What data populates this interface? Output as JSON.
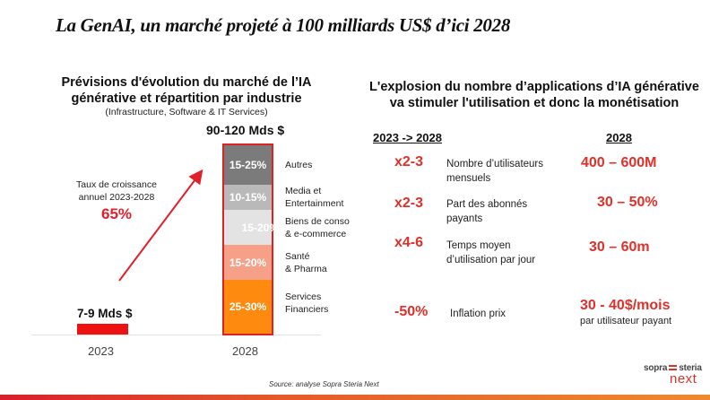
{
  "title": "La GenAI, un marché projeté à 100 milliards US$ d’ici 2028",
  "left_panel": {
    "heading_line1": "Prévisions d'évolution du marché de l’IA",
    "heading_line2": "générative et répartition par industrie",
    "subheading": "(Infrastructure, Software & IT Services)",
    "growth_label_line1": "Taux de croissance",
    "growth_label_line2": "annuel 2023-2028",
    "growth_value": "65%"
  },
  "chart_data": {
    "type": "bar",
    "title": "Prévisions d'évolution du marché de l’IA générative et répartition par industrie",
    "subtitle": "(Infrastructure, Software & IT Services)",
    "categories": [
      "2023",
      "2028"
    ],
    "totals_label": [
      "7-9 Mds $",
      "90-120 Mds $"
    ],
    "totals_range_bn_usd": [
      [
        7,
        9
      ],
      [
        90,
        120
      ]
    ],
    "stacked_2028": [
      {
        "industry_line1": "Autres",
        "industry_line2": "",
        "share_label": "15-25%",
        "share_range": [
          15,
          25
        ],
        "color": "#7b7b7b"
      },
      {
        "industry_line1": "Media et",
        "industry_line2": "Entertainment",
        "share_label": "10-15%",
        "share_range": [
          10,
          15
        ],
        "color": "#b9b9b9"
      },
      {
        "industry_line1": "Biens de conso",
        "industry_line2": "& e-commerce",
        "share_label": "15-20%",
        "share_range": [
          15,
          20
        ],
        "color": "#e3e3e3"
      },
      {
        "industry_line1": "Santé",
        "industry_line2": "& Pharma",
        "share_label": "15-20%",
        "share_range": [
          15,
          20
        ],
        "color": "#f7a088"
      },
      {
        "industry_line1": "Services",
        "industry_line2": "Financiers",
        "share_label": "25-30%",
        "share_range": [
          25,
          30
        ],
        "color": "#ff8a10"
      }
    ],
    "bar_2023_color": "#ee1111",
    "bar_2028_border": "#dd2222",
    "annotation": "Taux de croissance annuel 2023-2028 65%",
    "xlabel": "",
    "ylabel": ""
  },
  "right_panel": {
    "heading_line1": "L'explosion du nombre d’applications d’IA générative",
    "heading_line2": "va stimuler l'utilisation et donc la monétisation",
    "col_growth": "2023 -> 2028",
    "col_2028": "2028",
    "rows": [
      {
        "growth": "x2-3",
        "metric_line1": "Nombre d’utilisateurs",
        "metric_line2": "mensuels",
        "value": "400 – 600M",
        "value_sub": ""
      },
      {
        "growth": "x2-3",
        "metric_line1": "Part des abonnés",
        "metric_line2": "payants",
        "value": "30 – 50%",
        "value_sub": ""
      },
      {
        "growth": "x4-6",
        "metric_line1": "Temps moyen",
        "metric_line2": "d’utilisation par jour",
        "value": "30 – 60m",
        "value_sub": ""
      },
      {
        "growth": "-50%",
        "metric_line1": "Inflation prix",
        "metric_line2": "",
        "value": "30 - 40$/mois",
        "value_sub": "par utilisateur payant"
      }
    ]
  },
  "footer": {
    "source": "Source: analyse Sopra Steria Next",
    "logo_line1_a": "sopra",
    "logo_line1_b": "steria",
    "logo_line2": "next"
  },
  "colors": {
    "accent_red": "#e0302a",
    "bottom_gradient_start": "#d8202a",
    "bottom_gradient_end": "#ee8a2e"
  }
}
